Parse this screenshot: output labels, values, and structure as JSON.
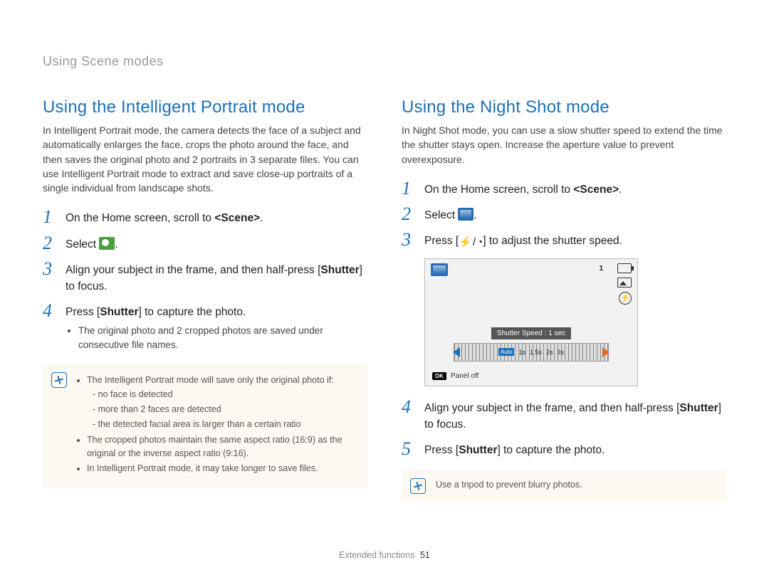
{
  "breadcrumb": "Using Scene modes",
  "left": {
    "heading": "Using the Intelligent Portrait mode",
    "intro": "In Intelligent Portrait mode, the camera detects the face of a subject and automatically enlarges the face, crops the photo around the face, and then saves the original photo and 2 portraits in 3 separate files. You can use Intelligent Portrait mode to extract and save close-up portraits of a single individual from landscape shots.",
    "steps": [
      {
        "n": "1",
        "pre": "On the Home screen, scroll to ",
        "bold": "<Scene>",
        "post": "."
      },
      {
        "n": "2",
        "pre": "Select ",
        "icon": "portrait",
        "post": "."
      },
      {
        "n": "3",
        "pre": "Align your subject in the frame, and then half-press [",
        "bold": "Shutter",
        "post": "] to focus."
      },
      {
        "n": "4",
        "pre": "Press [",
        "bold": "Shutter",
        "post": "] to capture the photo.",
        "sub": [
          "The original photo and 2 cropped photos are saved under consecutive file names."
        ]
      }
    ],
    "note": {
      "items": [
        {
          "text": "The Intelligent Portrait mode will save only the original photo if:",
          "sub": [
            "no face is detected",
            "more than 2 faces are detected",
            "the detected facial area is larger than a certain ratio"
          ]
        },
        {
          "text": "The cropped photos maintain the same aspect ratio (16:9) as the original or the inverse aspect ratio (9:16)."
        },
        {
          "text": "In Intelligent Portrait mode, it may take longer to save files."
        }
      ]
    }
  },
  "right": {
    "heading": "Using the Night Shot mode",
    "intro": "In Night Shot mode, you can use a slow shutter speed to extend the time the shutter stays open. Increase the aperture value to prevent overexposure.",
    "steps": [
      {
        "n": "1",
        "pre": "On the Home screen, scroll to ",
        "bold": "<Scene>",
        "post": "."
      },
      {
        "n": "2",
        "pre": "Select ",
        "icon": "night",
        "post": "."
      },
      {
        "n": "3",
        "pre": "Press [",
        "keys": true,
        "post": "] to adjust the shutter speed."
      },
      {
        "n": "4",
        "pre": "Align your subject in the frame, and then half-press [",
        "bold": "Shutter",
        "post": "] to focus."
      },
      {
        "n": "5",
        "pre": "Press [",
        "bold": "Shutter",
        "post": "] to capture the photo."
      }
    ],
    "lcd": {
      "single": "1",
      "label": "Shutter Speed : 1 sec",
      "scale": {
        "auto": "Auto",
        "vals": [
          "1s",
          "1.5s",
          "2s",
          "3s"
        ]
      },
      "panel": "Panel off",
      "ok": "OK"
    },
    "note_text": "Use a tripod to prevent blurry photos."
  },
  "footer": {
    "section": "Extended functions",
    "page": "51"
  },
  "colors": {
    "heading": "#1d70b7",
    "step_num": "#1d70b7",
    "note_bg": "#fcf8f2",
    "portrait_icon": "#4a9e3f",
    "night_icon": "#2b6cb0",
    "scale_blue": "#1d70b7",
    "scale_orange": "#e06a1a"
  }
}
